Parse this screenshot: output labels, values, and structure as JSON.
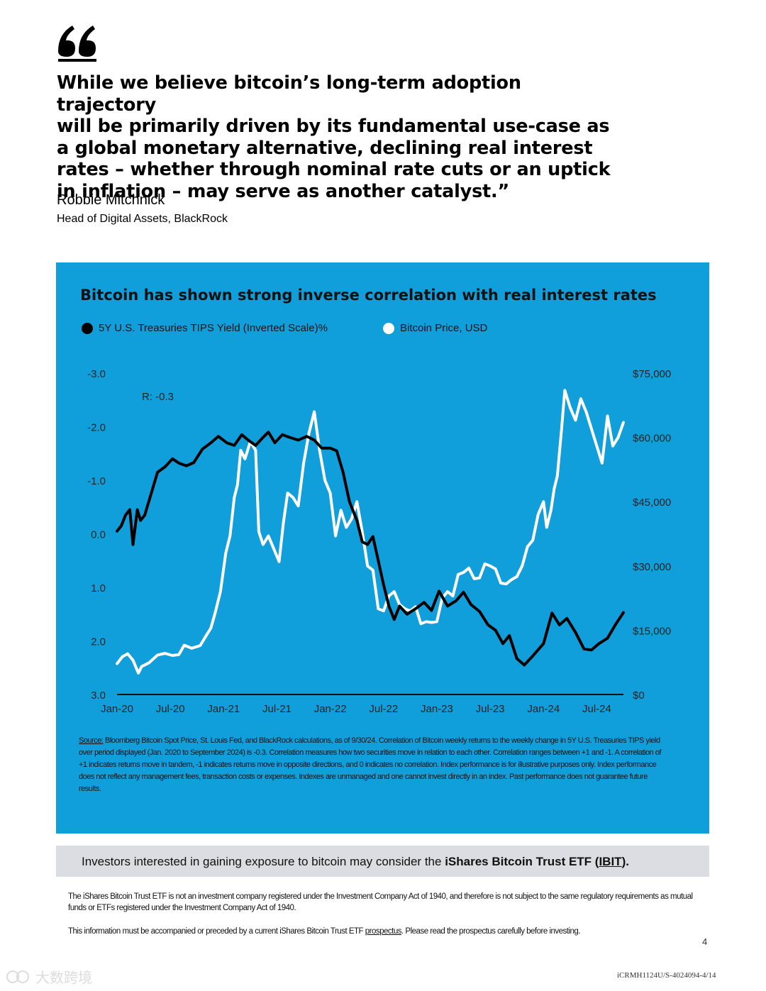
{
  "quote": {
    "lines": [
      "While we believe bitcoin’s long-term adoption trajectory",
      "will be primarily driven by its fundamental use-case as",
      "a global monetary alternative, declining real interest",
      "rates – whether through nominal rate cuts or an uptick",
      "in inflation – may serve as another catalyst.”"
    ],
    "author": "Robbie Mitchnick",
    "author_title": "Head of Digital Assets, BlackRock"
  },
  "colors": {
    "panel": "#119fdc",
    "tips_series": "#000000",
    "bitcoin_series": "#ffffff",
    "cta_bg": "#dcdde3"
  },
  "chart_data": {
    "type": "line",
    "title": "Bitcoin has shown strong inverse correlation with real interest rates",
    "annotation": "R: -0.3",
    "legend_position": "top-left",
    "x_tick_labels": [
      "Jan-20",
      "Jul-20",
      "Jan-21",
      "Jul-21",
      "Jan-22",
      "Jul-22",
      "Jan-23",
      "Jul-23",
      "Jan-24",
      "Jul-24"
    ],
    "left_axis": {
      "label": "5Y U.S. Treasuries TIPS Yield (Inverted Scale)%",
      "inverted": true,
      "range": [
        -3.0,
        3.0
      ],
      "tick_labels": [
        "-3.0",
        "-2.0",
        "-1.0",
        "0.0",
        "1.0",
        "2.0",
        "3.0"
      ],
      "tick_values": [
        -3,
        -2,
        -1,
        0,
        1,
        2,
        3
      ]
    },
    "right_axis": {
      "label": "Bitcoin Price, USD",
      "range": [
        0,
        75000
      ],
      "tick_labels": [
        "$75,000",
        "$60,000",
        "$45,000",
        "$30,000",
        "$15,000",
        "$0"
      ],
      "tick_values": [
        75000,
        60000,
        45000,
        30000,
        15000,
        0
      ]
    },
    "series": [
      {
        "name": "5Y U.S. Treasuries TIPS Yield (Inverted Scale)%",
        "axis": "left",
        "t": [
          2020.0,
          2020.04,
          2020.08,
          2020.12,
          2020.15,
          2020.19,
          2020.22,
          2020.26,
          2020.32,
          2020.38,
          2020.45,
          2020.52,
          2020.58,
          2020.65,
          2020.72,
          2020.8,
          2020.88,
          2020.95,
          2021.03,
          2021.1,
          2021.17,
          2021.23,
          2021.3,
          2021.36,
          2021.42,
          2021.48,
          2021.55,
          2021.62,
          2021.7,
          2021.78,
          2021.85,
          2021.92,
          2022.0,
          2022.06,
          2022.12,
          2022.18,
          2022.25,
          2022.3,
          2022.35,
          2022.4,
          2022.45,
          2022.5,
          2022.55,
          2022.6,
          2022.65,
          2022.72,
          2022.8,
          2022.88,
          2022.95,
          2023.02,
          2023.1,
          2023.18,
          2023.25,
          2023.32,
          2023.4,
          2023.48,
          2023.55,
          2023.62,
          2023.68,
          2023.75,
          2023.82,
          2023.9,
          2024.0,
          2024.08,
          2024.15,
          2024.22,
          2024.3,
          2024.38,
          2024.45,
          2024.52,
          2024.6,
          2024.68,
          2024.75
        ],
        "values": [
          -0.05,
          -0.15,
          -0.35,
          -0.45,
          0.2,
          -0.45,
          -0.25,
          -0.35,
          -0.75,
          -1.15,
          -1.25,
          -1.4,
          -1.32,
          -1.27,
          -1.33,
          -1.58,
          -1.7,
          -1.82,
          -1.7,
          -1.65,
          -1.85,
          -1.75,
          -1.65,
          -1.78,
          -1.9,
          -1.7,
          -1.85,
          -1.8,
          -1.75,
          -1.82,
          -1.75,
          -1.6,
          -1.6,
          -1.55,
          -1.15,
          -0.6,
          -0.25,
          0.15,
          0.2,
          0.05,
          0.5,
          0.95,
          1.35,
          1.6,
          1.35,
          1.5,
          1.4,
          1.28,
          1.43,
          1.07,
          1.35,
          1.25,
          1.09,
          1.32,
          1.45,
          1.7,
          1.8,
          2.05,
          1.9,
          2.33,
          2.45,
          2.28,
          2.05,
          1.48,
          1.7,
          1.58,
          1.84,
          2.15,
          2.17,
          2.05,
          1.95,
          1.68,
          1.47
        ]
      },
      {
        "name": "Bitcoin Price, USD",
        "axis": "right",
        "t": [
          2020.0,
          2020.05,
          2020.1,
          2020.15,
          2020.2,
          2020.23,
          2020.3,
          2020.38,
          2020.45,
          2020.52,
          2020.58,
          2020.63,
          2020.7,
          2020.78,
          2020.83,
          2020.88,
          2020.92,
          2020.97,
          2021.02,
          2021.06,
          2021.1,
          2021.13,
          2021.16,
          2021.2,
          2021.25,
          2021.3,
          2021.33,
          2021.37,
          2021.42,
          2021.47,
          2021.52,
          2021.56,
          2021.6,
          2021.65,
          2021.7,
          2021.75,
          2021.8,
          2021.85,
          2021.9,
          2021.95,
          2022.0,
          2022.05,
          2022.1,
          2022.15,
          2022.2,
          2022.25,
          2022.3,
          2022.35,
          2022.4,
          2022.45,
          2022.5,
          2022.55,
          2022.6,
          2022.65,
          2022.7,
          2022.75,
          2022.8,
          2022.85,
          2022.9,
          2022.95,
          2023.0,
          2023.05,
          2023.1,
          2023.15,
          2023.2,
          2023.25,
          2023.3,
          2023.35,
          2023.4,
          2023.45,
          2023.5,
          2023.55,
          2023.6,
          2023.65,
          2023.7,
          2023.75,
          2023.8,
          2023.85,
          2023.9,
          2023.95,
          2024.0,
          2024.03,
          2024.07,
          2024.1,
          2024.13,
          2024.17,
          2024.2,
          2024.25,
          2024.3,
          2024.35,
          2024.4,
          2024.45,
          2024.5,
          2024.55,
          2024.6,
          2024.65,
          2024.7,
          2024.75
        ],
        "values": [
          7200,
          8800,
          9500,
          8000,
          5000,
          6500,
          7400,
          9200,
          9600,
          9100,
          9300,
          11500,
          10800,
          11400,
          13500,
          15500,
          19000,
          24000,
          33000,
          37000,
          46000,
          49000,
          57000,
          55000,
          59000,
          57000,
          38000,
          35000,
          37000,
          34000,
          31000,
          40000,
          47000,
          46000,
          44000,
          54000,
          61000,
          66000,
          57000,
          50000,
          47000,
          37000,
          43000,
          39000,
          41000,
          45000,
          38000,
          30000,
          29000,
          20000,
          19500,
          23000,
          24000,
          21000,
          20000,
          19500,
          20500,
          16500,
          17000,
          16800,
          17000,
          22500,
          24000,
          23000,
          28000,
          28500,
          29500,
          27000,
          27200,
          30500,
          30000,
          29300,
          26000,
          25800,
          26800,
          27500,
          30000,
          34500,
          36000,
          42000,
          45000,
          39000,
          43000,
          48000,
          51000,
          62000,
          71000,
          67000,
          64000,
          69000,
          66000,
          62000,
          58000,
          54000,
          65000,
          58000,
          60000,
          63500
        ]
      }
    ]
  },
  "source": {
    "label": "Source:",
    "text": " Bloomberg Bitcoin Spot Price, St. Louis Fed, and BlackRock calculations, as of 9/30/24. Correlation of Bitcoin weekly returns to the weekly change in 5Y U.S. Treasuries TIPS yield over period displayed (Jan. 2020 to September 2024) is -0.3. Correlation measures how two securities move in relation to each other. Correlation ranges between +1 and -1. A correlation of +1 indicates returns move in tandem, -1 indicates returns move in opposite directions, and 0 indicates no correlation. Index performance is for illustrative purposes only. Index performance does not reflect any management fees, transaction costs or expenses. Indexes are unmanaged and one cannot invest directly in an index. Past performance does not guarantee future results."
  },
  "cta": {
    "prefix": "Investors interested in gaining exposure to bitcoin may consider the ",
    "fund": "iShares Bitcoin Trust ETF",
    "open": " (",
    "ticker": "IBIT",
    "close": ")."
  },
  "disclaimer": {
    "text": "The iShares Bitcoin Trust ETF is not an investment company registered under the Investment Company Act of 1940, and therefore is not subject to the same regulatory requirements as mutual funds or ETFs registered under the Investment Company Act of 1940.",
    "line2_prefix": "This information must be accompanied or preceded by a current iShares Bitcoin Trust ETF ",
    "line2_link": "prospectus",
    "line2_suffix": ". Please read the prospectus carefully before investing."
  },
  "page_number": "4",
  "footer_code": "iCRMH1124U/S-4024094-4/14",
  "watermark": "大数跨境"
}
